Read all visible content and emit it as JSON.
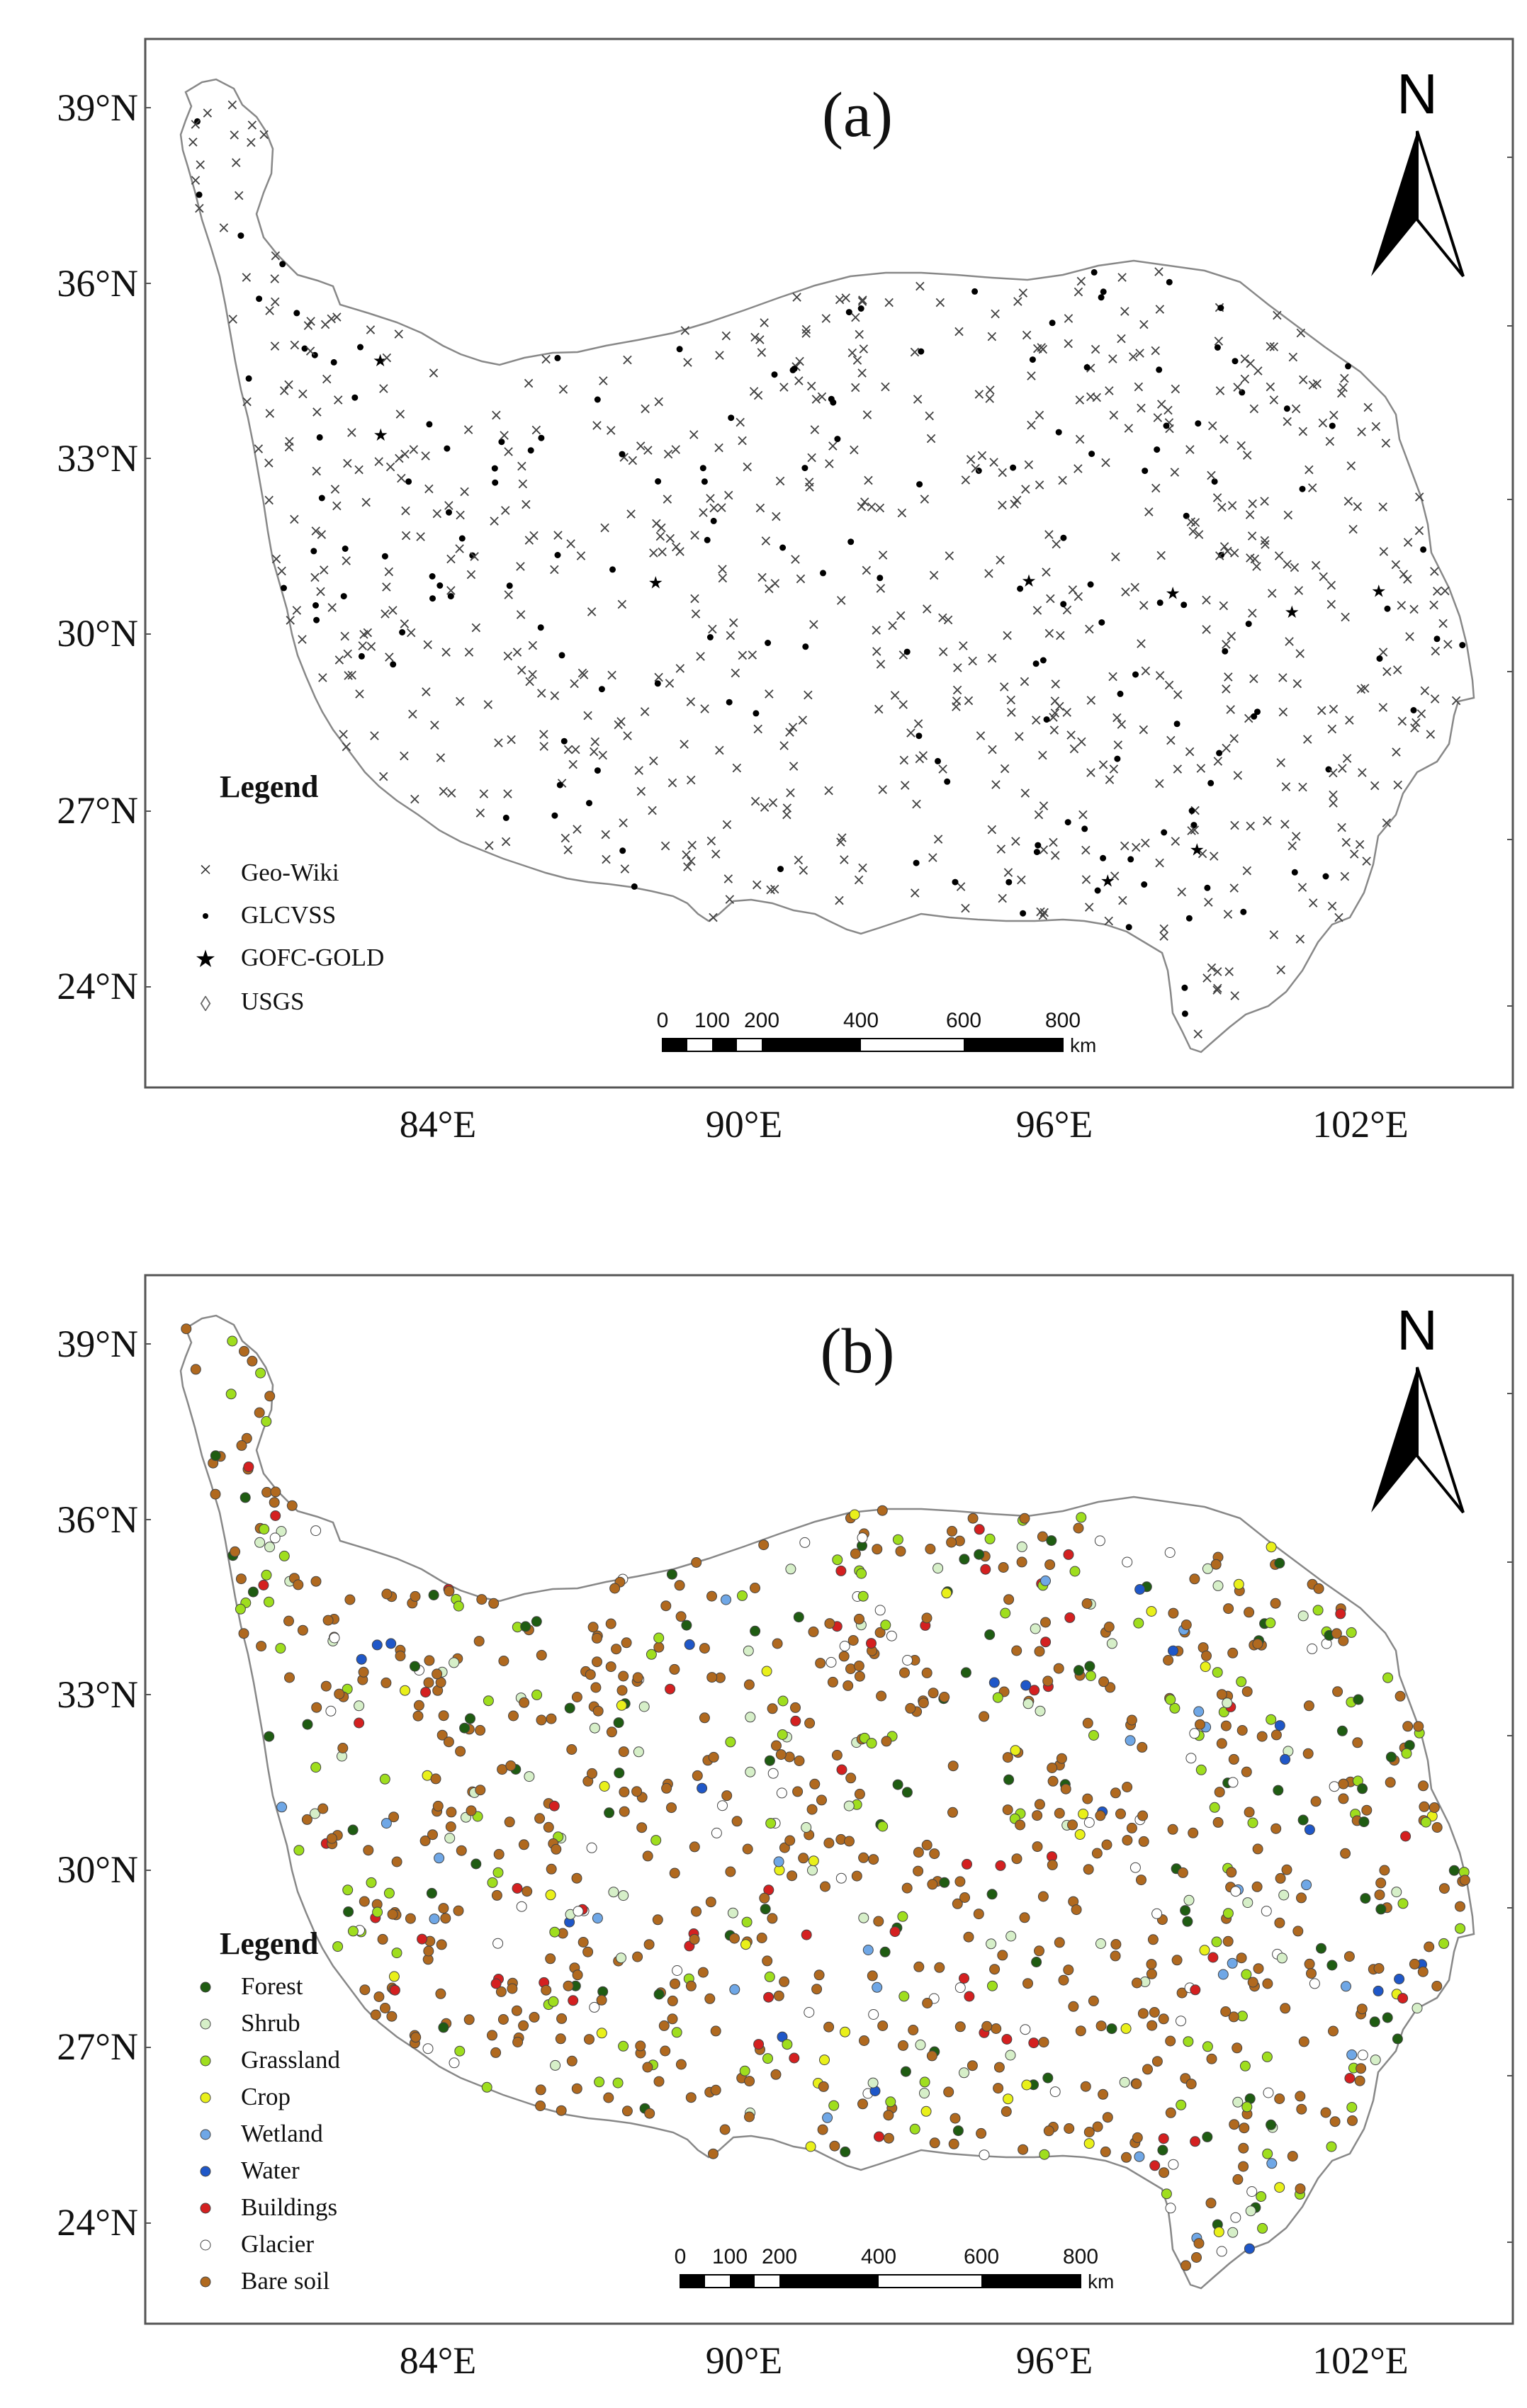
{
  "panels": [
    {
      "id": "a",
      "label": "(a)",
      "north_label": "N",
      "lat_labels": [
        "39°N",
        "36°N",
        "33°N",
        "30°N",
        "27°N",
        "24°N"
      ],
      "lon_labels": [
        "84°E",
        "90°E",
        "96°E",
        "102°E"
      ],
      "legend_title": "Legend",
      "legend": [
        {
          "label": "Geo-Wiki",
          "symbol": "cross",
          "color": "#333333"
        },
        {
          "label": "GLCVSS",
          "symbol": "dot",
          "color": "#000000"
        },
        {
          "label": "GOFC-GOLD",
          "symbol": "star",
          "color": "#000000"
        },
        {
          "label": "USGS",
          "symbol": "diamond",
          "color": "#666666"
        }
      ],
      "scale_labels": [
        "0",
        "100",
        "200",
        "400",
        "600",
        "800"
      ],
      "scale_unit": "km"
    },
    {
      "id": "b",
      "label": "(b)",
      "north_label": "N",
      "lat_labels": [
        "39°N",
        "36°N",
        "33°N",
        "30°N",
        "27°N",
        "24°N"
      ],
      "lon_labels": [
        "84°E",
        "90°E",
        "96°E",
        "102°E"
      ],
      "legend_title": "Legend",
      "legend": [
        {
          "label": "Forest",
          "symbol": "circle",
          "color": "#1f5c12"
        },
        {
          "label": "Shrub",
          "symbol": "circle",
          "color": "#d6efc8"
        },
        {
          "label": "Grassland",
          "symbol": "circle",
          "color": "#9fde1e"
        },
        {
          "label": "Crop",
          "symbol": "circle",
          "color": "#e9f01a"
        },
        {
          "label": "Wetland",
          "symbol": "circle",
          "color": "#6fa7e6"
        },
        {
          "label": "Water",
          "symbol": "circle",
          "color": "#1f57c8"
        },
        {
          "label": "Buildings",
          "symbol": "circle",
          "color": "#d42020"
        },
        {
          "label": "Glacier",
          "symbol": "circle",
          "color": "#ffffff"
        },
        {
          "label": "Bare soil",
          "symbol": "circle",
          "color": "#b0691f"
        }
      ],
      "scale_labels": [
        "0",
        "100",
        "200",
        "400",
        "600",
        "800"
      ],
      "scale_unit": "km"
    }
  ]
}
